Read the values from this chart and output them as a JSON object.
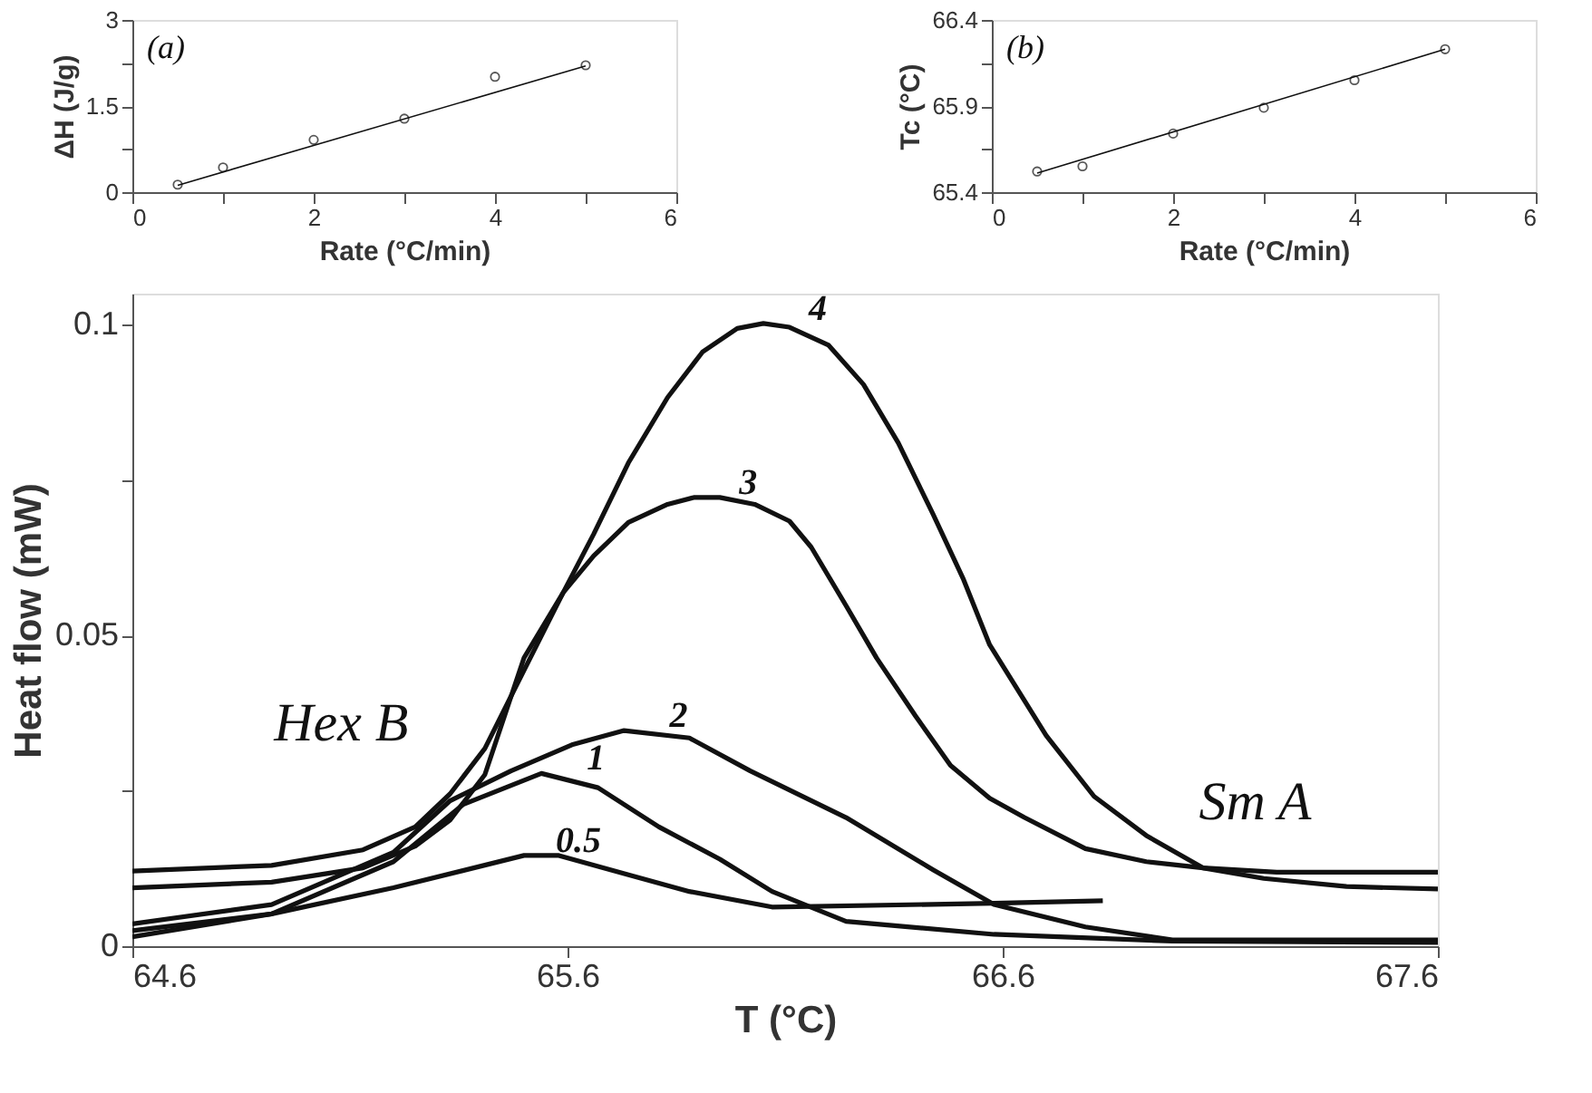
{
  "chart_data": [
    {
      "type": "line",
      "xlabel": "T (°C)",
      "ylabel": "Heat flow (mW)",
      "xlim": [
        64.6,
        67.6
      ],
      "xticks": [
        64.6,
        65.6,
        66.6,
        67.6
      ],
      "ylim": [
        0,
        0.105
      ],
      "yticks": [
        0,
        {
          "value": 0.025,
          "label": null
        },
        0.05,
        {
          "value": 0.075,
          "label": null
        },
        0.1
      ],
      "series": [
        {
          "name": "4",
          "color": "#111111",
          "x": [
            64.6,
            64.92,
            65.13,
            65.25,
            65.33,
            65.41,
            65.5,
            65.59,
            65.66,
            65.74,
            65.83,
            65.91,
            65.99,
            66.05,
            66.11,
            66.2,
            66.28,
            66.36,
            66.44,
            66.51,
            66.57,
            66.7,
            66.81,
            66.93,
            67.06,
            67.23,
            67.6
          ],
          "values": [
            0.0121,
            0.013,
            0.0155,
            0.0192,
            0.0245,
            0.0318,
            0.0444,
            0.0569,
            0.0663,
            0.0778,
            0.0883,
            0.0956,
            0.0994,
            0.1002,
            0.0996,
            0.0967,
            0.0904,
            0.081,
            0.0695,
            0.059,
            0.0485,
            0.0339,
            0.0241,
            0.0178,
            0.0126,
            0.0119,
            0.0119
          ]
        },
        {
          "name": "3",
          "color": "#111111",
          "x": [
            64.6,
            64.92,
            65.13,
            65.25,
            65.33,
            65.41,
            65.5,
            65.59,
            65.66,
            65.74,
            65.83,
            65.89,
            65.95,
            66.03,
            66.11,
            66.16,
            66.24,
            66.31,
            66.4,
            66.48,
            66.57,
            66.65,
            66.79,
            66.93,
            67.06,
            67.2,
            67.39,
            67.6
          ],
          "values": [
            0.0094,
            0.0103,
            0.0126,
            0.0161,
            0.0203,
            0.0276,
            0.0464,
            0.0569,
            0.0628,
            0.0682,
            0.0711,
            0.0722,
            0.0722,
            0.0711,
            0.0684,
            0.0642,
            0.0548,
            0.0464,
            0.037,
            0.0291,
            0.0238,
            0.0207,
            0.0157,
            0.0136,
            0.0126,
            0.0109,
            0.0096,
            0.0092
          ]
        },
        {
          "name": "2",
          "color": "#111111",
          "x": [
            64.6,
            64.92,
            65.2,
            65.33,
            65.47,
            65.61,
            65.73,
            65.88,
            66.02,
            66.24,
            66.44,
            66.58,
            66.79,
            66.99,
            67.6
          ],
          "values": [
            0.0036,
            0.0067,
            0.0151,
            0.0234,
            0.0282,
            0.0324,
            0.0347,
            0.0335,
            0.0282,
            0.0207,
            0.0123,
            0.0067,
            0.0031,
            0.001,
            0.001
          ]
        },
        {
          "name": "1",
          "color": "#111111",
          "x": [
            64.6,
            64.92,
            65.2,
            65.36,
            65.54,
            65.67,
            65.81,
            65.95,
            66.07,
            66.24,
            66.58,
            66.99,
            67.6
          ],
          "values": [
            0.0015,
            0.0052,
            0.0136,
            0.0228,
            0.0278,
            0.0255,
            0.0192,
            0.014,
            0.0088,
            0.004,
            0.0019,
            0.0008,
            0.0006
          ]
        },
        {
          "name": "0.5",
          "color": "#111111",
          "x": [
            64.6,
            64.92,
            65.2,
            65.5,
            65.58,
            65.74,
            65.88,
            66.07,
            66.58,
            66.83
          ],
          "values": [
            0.0025,
            0.0052,
            0.0094,
            0.0146,
            0.0146,
            0.0115,
            0.0088,
            0.0063,
            0.0069,
            0.0073
          ]
        }
      ],
      "annotations": [
        "Hex B",
        "Sm A"
      ]
    },
    {
      "type": "scatter",
      "xlabel": "Rate (°C/min)",
      "ylabel": "ΔH (J/g)",
      "xlim": [
        0,
        6
      ],
      "xticks": [
        0,
        {
          "value": 1,
          "label": null
        },
        2,
        {
          "value": 3,
          "label": null
        },
        4,
        {
          "value": 5,
          "label": null
        },
        6
      ],
      "ylim": [
        0,
        3
      ],
      "yticks": [
        0,
        {
          "value": 0.75,
          "label": null
        },
        1.5,
        {
          "value": 2.25,
          "label": null
        },
        3
      ],
      "series": [
        {
          "color": "#111111",
          "marker": "circle",
          "x": [
            0.5,
            1,
            2,
            3,
            4,
            5
          ],
          "values": [
            0.13,
            0.43,
            0.91,
            1.28,
            2.01,
            2.21
          ]
        },
        {
          "type": "line",
          "color": "#111111",
          "x": [
            0.5,
            5
          ],
          "values": [
            0.12,
            2.2
          ]
        }
      ],
      "annotations": [
        "(a)"
      ]
    },
    {
      "type": "scatter",
      "xlabel": "Rate (°C/min)",
      "ylabel": "Tc (°C)",
      "xlim": [
        0,
        6
      ],
      "xticks": [
        0,
        {
          "value": 1,
          "label": null
        },
        2,
        {
          "value": 3,
          "label": null
        },
        4,
        {
          "value": 5,
          "label": null
        },
        6
      ],
      "ylim": [
        65.4,
        66.4
      ],
      "yticks": [
        65.4,
        {
          "value": 65.65,
          "label": null
        },
        65.9,
        {
          "value": 66.15,
          "label": null
        },
        66.4
      ],
      "series": [
        {
          "color": "#111111",
          "marker": "circle",
          "x": [
            0.5,
            1,
            2,
            3,
            4,
            5
          ],
          "values": [
            65.52,
            65.55,
            65.74,
            65.89,
            66.05,
            66.23
          ]
        },
        {
          "type": "line",
          "color": "#111111",
          "x": [
            0.5,
            5
          ],
          "values": [
            65.51,
            66.23
          ]
        }
      ],
      "annotations": [
        "(b)"
      ]
    }
  ]
}
